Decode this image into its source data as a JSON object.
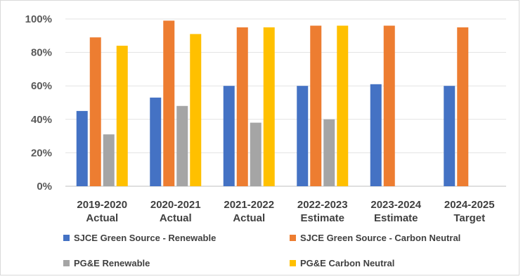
{
  "chart_data": {
    "type": "bar",
    "categories": [
      [
        "2019-2020",
        "Actual"
      ],
      [
        "2020-2021",
        "Actual"
      ],
      [
        "2021-2022",
        "Actual"
      ],
      [
        "2022-2023",
        "Estimate"
      ],
      [
        "2023-2024",
        "Estimate"
      ],
      [
        "2024-2025",
        "Target"
      ]
    ],
    "series": [
      {
        "name": "SJCE Green Source - Renewable",
        "color": "#4472c4",
        "values": [
          45,
          53,
          60,
          60,
          61,
          60
        ]
      },
      {
        "name": "SJCE Green Source - Carbon Neutral",
        "color": "#ed7d31",
        "values": [
          89,
          99,
          95,
          96,
          96,
          95
        ]
      },
      {
        "name": "PG&E Renewable",
        "color": "#a5a5a5",
        "values": [
          31,
          48,
          38,
          40,
          null,
          null
        ]
      },
      {
        "name": "PG&E Carbon Neutral",
        "color": "#ffc000",
        "values": [
          84,
          91,
          95,
          96,
          null,
          null
        ]
      }
    ],
    "yticks": [
      "0%",
      "20%",
      "40%",
      "60%",
      "80%",
      "100%"
    ],
    "ylim": [
      0,
      100
    ],
    "grid": true,
    "legend_position": "bottom",
    "title": "",
    "xlabel": "",
    "ylabel": ""
  }
}
